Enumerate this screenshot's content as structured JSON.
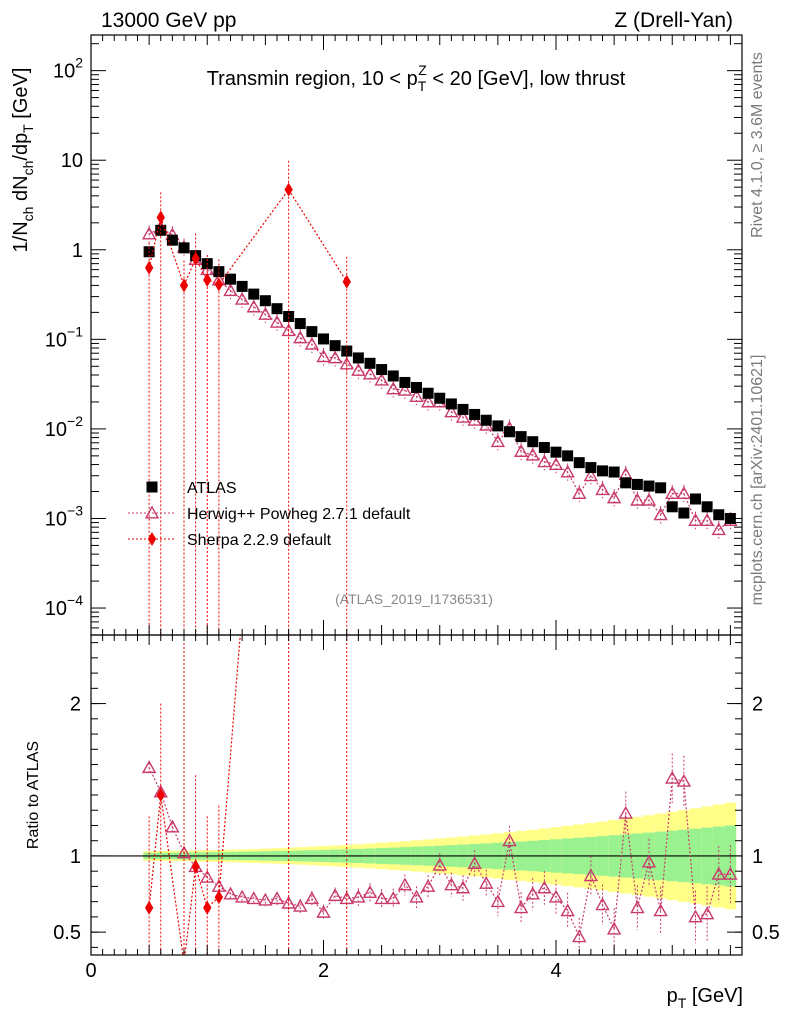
{
  "header": {
    "left": "13000 GeV pp",
    "right": "Z (Drell-Yan)"
  },
  "side": {
    "rivet": "Rivet 4.1.0, ≥ 3.6M events",
    "mcplots": "mcplots.cern.ch [arXiv:2401.10621]"
  },
  "watermark": "(ATLAS_2019_I1736531)",
  "colors": {
    "data": "#000000",
    "herwig": "#c83a6e",
    "sherpa": "#ee0000",
    "band_inner": "#99f28f",
    "band_outer": "#ffff88"
  },
  "chart_data": [
    {
      "type": "scatter",
      "panel": "main",
      "title": "Transmin region, 10 < p_T^Z < 20 [GeV], low thrust",
      "title_parts": {
        "a": "Transmin region, 10 < p",
        "sub": "T",
        "sup": "Z",
        "b": " < 20 [GeV], low thrust"
      },
      "ylabel": "1/N_ch dN_ch/dp_T [GeV]",
      "ylabel_parts": {
        "a": "1/N",
        "s1": "ch",
        "b": " dN",
        "s2": "ch",
        "c": "/dp",
        "s3": "T",
        "d": " [GeV]"
      },
      "yscale": "log",
      "ylim": [
        5e-05,
        250
      ],
      "xlim": [
        0,
        5.6
      ],
      "yticks": [
        {
          "v": 100,
          "base": "10",
          "exp": "2"
        },
        {
          "v": 10,
          "base": "10",
          "exp": ""
        },
        {
          "v": 1,
          "base": "1",
          "exp": ""
        },
        {
          "v": 0.1,
          "base": "10",
          "exp": "−1"
        },
        {
          "v": 0.01,
          "base": "10",
          "exp": "−2"
        },
        {
          "v": 0.001,
          "base": "10",
          "exp": "−3"
        },
        {
          "v": 0.0001,
          "base": "10",
          "exp": "−4"
        }
      ],
      "legend": {
        "position": "bottom-left",
        "entries": [
          "ATLAS",
          "Herwig++ Powheg 2.7.1 default",
          "Sherpa 2.2.9 default"
        ]
      },
      "series": [
        {
          "name": "ATLAS",
          "x": [
            0.5,
            0.6,
            0.7,
            0.8,
            0.9,
            1.0,
            1.1,
            1.2,
            1.3,
            1.4,
            1.5,
            1.6,
            1.7,
            1.8,
            1.9,
            2.0,
            2.1,
            2.2,
            2.3,
            2.4,
            2.5,
            2.6,
            2.7,
            2.8,
            2.9,
            3.0,
            3.1,
            3.2,
            3.3,
            3.4,
            3.5,
            3.6,
            3.7,
            3.8,
            3.9,
            4.0,
            4.1,
            4.2,
            4.3,
            4.4,
            4.5,
            4.6,
            4.7,
            4.8,
            4.9,
            5.0,
            5.1,
            5.2,
            5.3,
            5.4,
            5.5
          ],
          "y": [
            0.95,
            1.65,
            1.28,
            1.05,
            0.86,
            0.7,
            0.57,
            0.47,
            0.39,
            0.32,
            0.27,
            0.22,
            0.18,
            0.15,
            0.122,
            0.101,
            0.085,
            0.074,
            0.062,
            0.054,
            0.046,
            0.039,
            0.033,
            0.029,
            0.025,
            0.022,
            0.019,
            0.0165,
            0.0145,
            0.0125,
            0.0108,
            0.0093,
            0.0082,
            0.0072,
            0.0062,
            0.0055,
            0.005,
            0.0042,
            0.0037,
            0.0034,
            0.0033,
            0.0025,
            0.0024,
            0.0023,
            0.0022,
            0.00135,
            0.00115,
            0.00165,
            0.00135,
            0.0011,
            0.001
          ]
        },
        {
          "name": "Herwig++ Powheg 2.7.1 default",
          "x": [
            0.5,
            0.6,
            0.7,
            0.8,
            0.9,
            1.0,
            1.1,
            1.2,
            1.3,
            1.4,
            1.5,
            1.6,
            1.7,
            1.8,
            1.9,
            2.0,
            2.1,
            2.2,
            2.3,
            2.4,
            2.5,
            2.6,
            2.7,
            2.8,
            2.9,
            3.0,
            3.1,
            3.2,
            3.3,
            3.4,
            3.5,
            3.6,
            3.7,
            3.8,
            3.9,
            4.0,
            4.1,
            4.2,
            4.3,
            4.4,
            4.5,
            4.6,
            4.7,
            4.8,
            4.9,
            5.0,
            5.1,
            5.2,
            5.3,
            5.4,
            5.5
          ],
          "y": [
            1.5,
            1.75,
            1.47,
            1.07,
            0.78,
            0.6,
            0.46,
            0.35,
            0.28,
            0.23,
            0.19,
            0.155,
            0.125,
            0.104,
            0.088,
            0.064,
            0.062,
            0.053,
            0.045,
            0.041,
            0.035,
            0.028,
            0.027,
            0.023,
            0.02,
            0.02,
            0.0155,
            0.0135,
            0.0125,
            0.011,
            0.0072,
            0.0102,
            0.0056,
            0.0051,
            0.0043,
            0.004,
            0.0033,
            0.0019,
            0.003,
            0.0021,
            0.0017,
            0.0031,
            0.0016,
            0.0016,
            0.0011,
            0.0019,
            0.0019,
            0.00095,
            0.00095,
            0.00075,
            0.00095
          ]
        },
        {
          "name": "Sherpa 2.2.9 default",
          "x": [
            0.5,
            0.6,
            0.8,
            0.9,
            1.0,
            1.1,
            1.7,
            2.2
          ],
          "y": [
            0.63,
            2.3,
            0.4,
            0.8,
            0.46,
            0.41,
            4.7,
            0.44
          ]
        }
      ]
    },
    {
      "type": "scatter",
      "panel": "ratio",
      "ylabel": "Ratio to ATLAS",
      "xlabel": "p_T [GeV]",
      "xlabel_parts": {
        "a": "p",
        "sub": "T",
        "b": " [GeV]"
      },
      "xlim": [
        0,
        5.6
      ],
      "ylim": [
        0.35,
        2.45
      ],
      "xticks": [
        0,
        2,
        4
      ],
      "yticks": [
        0.5,
        1,
        2
      ],
      "series": [
        {
          "name": "Herwig++ Powheg 2.7.1 default",
          "x": [
            0.5,
            0.6,
            0.7,
            0.8,
            0.9,
            1.0,
            1.1,
            1.2,
            1.3,
            1.4,
            1.5,
            1.6,
            1.7,
            1.8,
            1.9,
            2.0,
            2.1,
            2.2,
            2.3,
            2.4,
            2.5,
            2.6,
            2.7,
            2.8,
            2.9,
            3.0,
            3.1,
            3.2,
            3.3,
            3.4,
            3.5,
            3.6,
            3.7,
            3.8,
            3.9,
            4.0,
            4.1,
            4.2,
            4.3,
            4.4,
            4.5,
            4.6,
            4.7,
            4.8,
            4.9,
            5.0,
            5.1,
            5.2,
            5.3,
            5.4,
            5.5
          ],
          "y": [
            1.58,
            1.42,
            1.19,
            1.02,
            0.93,
            0.86,
            0.8,
            0.75,
            0.73,
            0.72,
            0.71,
            0.72,
            0.69,
            0.67,
            0.72,
            0.63,
            0.74,
            0.72,
            0.73,
            0.76,
            0.72,
            0.72,
            0.81,
            0.73,
            0.8,
            0.94,
            0.81,
            0.79,
            0.95,
            0.82,
            0.7,
            1.1,
            0.66,
            0.75,
            0.79,
            0.73,
            0.64,
            0.47,
            0.87,
            0.68,
            0.52,
            1.28,
            0.66,
            0.96,
            0.64,
            1.51,
            1.49,
            0.6,
            0.62,
            0.88,
            0.88
          ]
        },
        {
          "name": "Sherpa 2.2.9 default",
          "x": [
            0.5,
            0.6,
            0.9,
            1.0,
            1.1
          ],
          "y": [
            0.66,
            1.4,
            0.93,
            0.66,
            0.73
          ]
        }
      ]
    }
  ]
}
